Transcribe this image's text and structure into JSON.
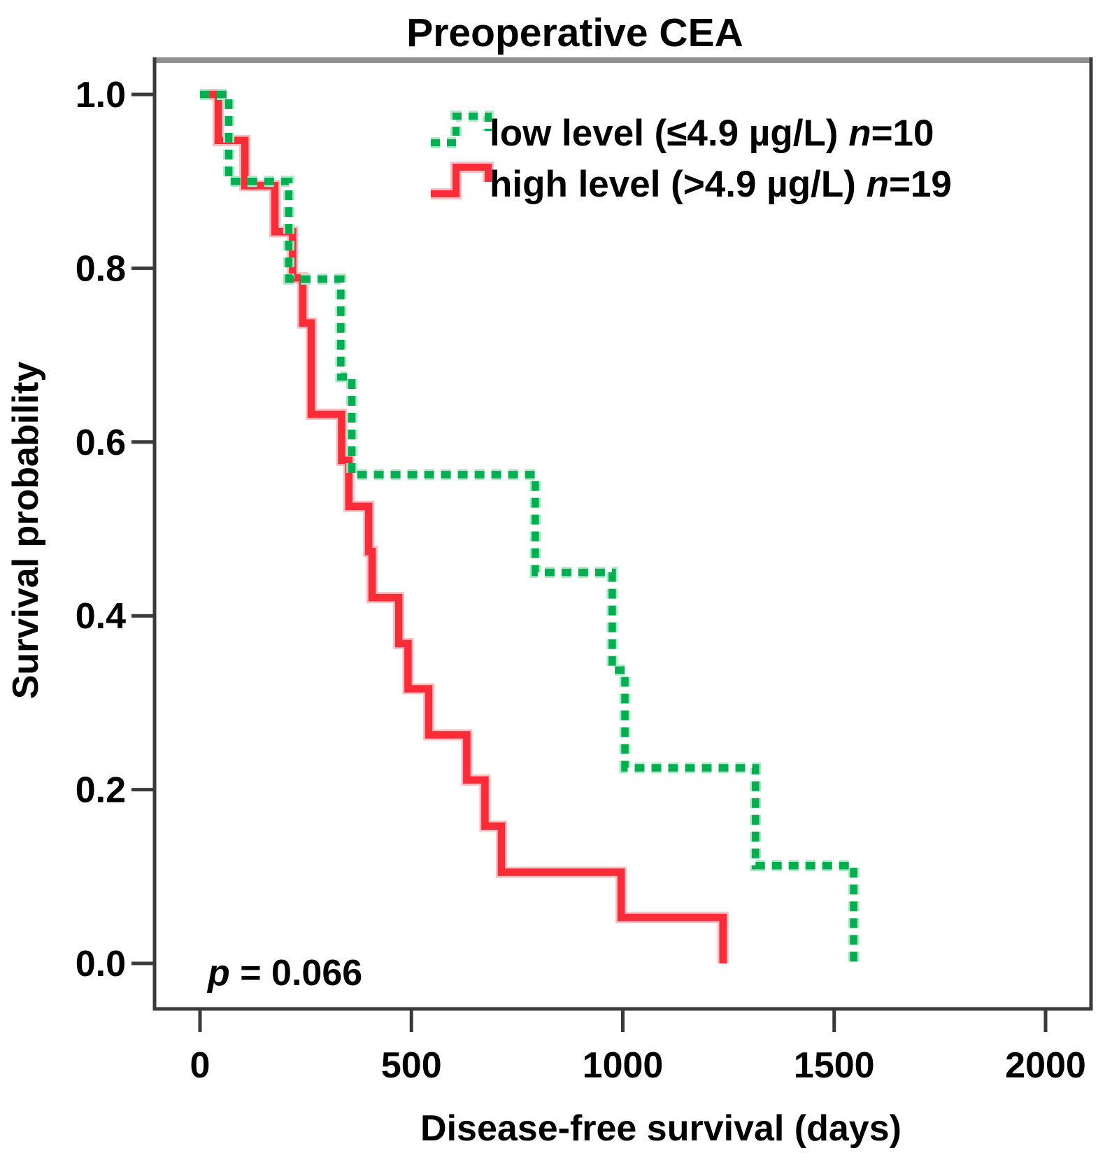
{
  "title": "Preoperative CEA",
  "axes": {
    "x": {
      "label": "Disease-free survival (days)",
      "ticks": [
        0,
        500,
        1000,
        1500,
        2000
      ]
    },
    "y": {
      "label": "Survival probability",
      "ticks": [
        1.0,
        0.8,
        0.6,
        0.4,
        0.2,
        0.0
      ]
    }
  },
  "legend": {
    "items": [
      {
        "label": "low level (≤4.9 µg/L) ",
        "n_var": "n",
        "n_eq": "=10",
        "color": "#00b050",
        "style": "dashed"
      },
      {
        "label": "high level (>4.9 µg/L) ",
        "n_var": "n",
        "n_eq": "=19",
        "color": "#fb2b38",
        "style": "solid"
      }
    ]
  },
  "annotation": {
    "p_var": "p",
    "p_rest": " = 0.066"
  },
  "chart_data": {
    "type": "line",
    "subtype": "kaplan-meier-step",
    "title": "Preoperative CEA",
    "xlabel": "Disease-free survival (days)",
    "ylabel": "Survival probability",
    "xlim": [
      0,
      2000
    ],
    "ylim": [
      0.0,
      1.0
    ],
    "x_ticks": [
      0,
      500,
      1000,
      1500,
      2000
    ],
    "y_ticks": [
      1.0,
      0.8,
      0.6,
      0.4,
      0.2,
      0.0
    ],
    "grid": false,
    "legend_position": "top-center-inside",
    "p_value": 0.066,
    "series": [
      {
        "name": "low level (≤4.9 µg/L)",
        "n": 10,
        "color": "#00b050",
        "halo": "#aee8c8",
        "style": "dashed",
        "steps": [
          [
            0,
            1.0
          ],
          [
            68,
            0.9
          ],
          [
            210,
            0.7875
          ],
          [
            333,
            0.675
          ],
          [
            359,
            0.5625
          ],
          [
            793,
            0.45
          ],
          [
            975,
            0.3375
          ],
          [
            1005,
            0.225
          ],
          [
            1314,
            0.1125
          ],
          [
            1546,
            0.0
          ]
        ]
      },
      {
        "name": "high level (>4.9 µg/L)",
        "n": 19,
        "color": "#fb2b38",
        "halo": "#ffbcc0",
        "style": "solid",
        "steps": [
          [
            0,
            1.0
          ],
          [
            43,
            0.947
          ],
          [
            106,
            0.895
          ],
          [
            177,
            0.842
          ],
          [
            219,
            0.789
          ],
          [
            243,
            0.737
          ],
          [
            263,
            0.632
          ],
          [
            335,
            0.579
          ],
          [
            352,
            0.526
          ],
          [
            399,
            0.474
          ],
          [
            407,
            0.421
          ],
          [
            470,
            0.368
          ],
          [
            492,
            0.316
          ],
          [
            541,
            0.263
          ],
          [
            631,
            0.211
          ],
          [
            674,
            0.158
          ],
          [
            713,
            0.105
          ],
          [
            996,
            0.053
          ],
          [
            1237,
            0.0
          ]
        ]
      }
    ]
  }
}
